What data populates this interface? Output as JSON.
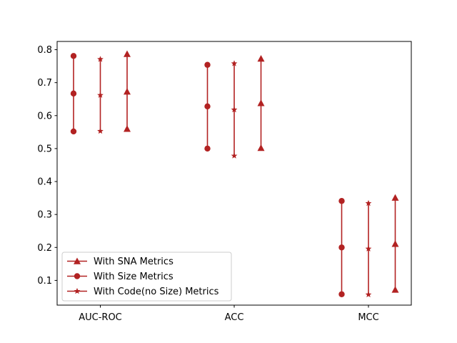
{
  "chart_data": {
    "type": "errorbar",
    "title": "",
    "xlabel": "",
    "ylabel": "",
    "ylim": [
      0.025,
      0.825
    ],
    "yticks": [
      0.1,
      0.2,
      0.3,
      0.4,
      0.5,
      0.6,
      0.7,
      0.8
    ],
    "ytick_labels": [
      "0.1",
      "0.2",
      "0.3",
      "0.4",
      "0.5",
      "0.6",
      "0.7",
      "0.8"
    ],
    "categories": [
      "AUC-ROC",
      "ACC",
      "MCC"
    ],
    "color": "#b22222",
    "legend_position": "lower-left",
    "series": [
      {
        "name": "With Size Metrics",
        "marker": "circle",
        "offset": -1,
        "points": [
          {
            "low": 0.552,
            "mid": 0.667,
            "high": 0.781
          },
          {
            "low": 0.5,
            "mid": 0.628,
            "high": 0.754
          },
          {
            "low": 0.058,
            "mid": 0.2,
            "high": 0.341
          }
        ]
      },
      {
        "name": "With Code(no Size) Metrics",
        "marker": "star",
        "offset": 0,
        "points": [
          {
            "low": 0.553,
            "mid": 0.662,
            "high": 0.771
          },
          {
            "low": 0.478,
            "mid": 0.618,
            "high": 0.758
          },
          {
            "low": 0.057,
            "mid": 0.196,
            "high": 0.334
          }
        ]
      },
      {
        "name": "With SNA Metrics",
        "marker": "triangle",
        "offset": 1,
        "points": [
          {
            "low": 0.56,
            "mid": 0.673,
            "high": 0.787
          },
          {
            "low": 0.502,
            "mid": 0.638,
            "high": 0.773
          },
          {
            "low": 0.072,
            "mid": 0.211,
            "high": 0.351
          }
        ]
      }
    ],
    "legend_order": [
      "With SNA Metrics",
      "With Size Metrics",
      "With Code(no Size) Metrics"
    ]
  }
}
